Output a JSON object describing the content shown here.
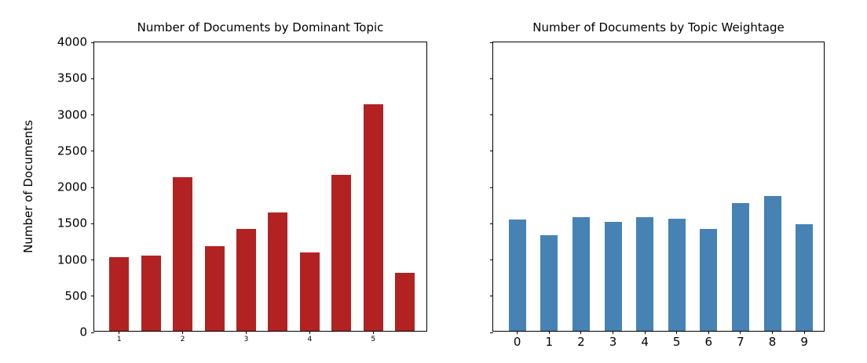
{
  "figure": {
    "background": "#ffffff",
    "axis_color": "#000000"
  },
  "chart_data": [
    {
      "type": "bar",
      "title": "Number of Documents by Dominant Topic",
      "xlabel": "",
      "ylabel": "Number of Documents",
      "bar_color": "#b22222",
      "categories": [
        1.0,
        1.5,
        2.0,
        2.5,
        3.0,
        3.5,
        4.0,
        4.5,
        5.0,
        5.5
      ],
      "values": [
        1020,
        1040,
        2120,
        1170,
        1405,
        1635,
        1085,
        2155,
        3125,
        805
      ],
      "x_ticks": [
        {
          "label": "1",
          "index": 0
        },
        {
          "label": "2",
          "index": 2
        },
        {
          "label": "3",
          "index": 4
        },
        {
          "label": "4",
          "index": 6
        },
        {
          "label": "5",
          "index": 8
        }
      ],
      "y_ticks": [
        0,
        500,
        1000,
        1500,
        2000,
        2500,
        3000,
        3500,
        4000
      ],
      "y_tick_labels_visible": true,
      "ylim": [
        0,
        4000
      ],
      "grid": false,
      "legend": "none"
    },
    {
      "type": "bar",
      "title": "Number of Documents by Topic Weightage",
      "xlabel": "",
      "ylabel": "",
      "bar_color": "#4682b4",
      "categories": [
        0,
        1,
        2,
        3,
        4,
        5,
        6,
        7,
        8,
        9
      ],
      "values": [
        1540,
        1320,
        1565,
        1500,
        1570,
        1545,
        1410,
        1765,
        1865,
        1475
      ],
      "x_ticks": [
        {
          "label": "0",
          "index": 0
        },
        {
          "label": "1",
          "index": 1
        },
        {
          "label": "2",
          "index": 2
        },
        {
          "label": "3",
          "index": 3
        },
        {
          "label": "4",
          "index": 4
        },
        {
          "label": "5",
          "index": 5
        },
        {
          "label": "6",
          "index": 6
        },
        {
          "label": "7",
          "index": 7
        },
        {
          "label": "8",
          "index": 8
        },
        {
          "label": "9",
          "index": 9
        }
      ],
      "y_ticks": [
        0,
        500,
        1000,
        1500,
        2000,
        2500,
        3000,
        3500,
        4000
      ],
      "y_tick_labels_visible": false,
      "ylim": [
        0,
        4000
      ],
      "grid": false,
      "legend": "none"
    }
  ]
}
